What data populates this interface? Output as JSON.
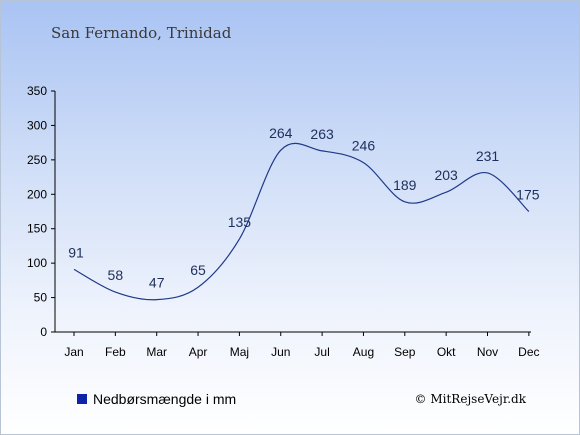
{
  "title": "San Fernando, Trinidad",
  "legend_label": "Nedbørsmængde i mm",
  "credit": "© MitRejseVejr.dk",
  "colors": {
    "line": "#1f3a8a",
    "legend_swatch": "#0f23a8",
    "axis": "#000000"
  },
  "chart_data": {
    "type": "line",
    "categories": [
      "Jan",
      "Feb",
      "Mar",
      "Apr",
      "Maj",
      "Jun",
      "Jul",
      "Aug",
      "Sep",
      "Okt",
      "Nov",
      "Dec"
    ],
    "series": [
      {
        "name": "Nedbørsmængde i mm",
        "values": [
          91,
          58,
          47,
          65,
          135,
          264,
          263,
          246,
          189,
          203,
          231,
          175
        ]
      }
    ],
    "ylim": [
      0,
      350
    ],
    "yticks": [
      0,
      50,
      100,
      150,
      200,
      250,
      300,
      350
    ],
    "grid": false,
    "legend": "bottom-left"
  }
}
